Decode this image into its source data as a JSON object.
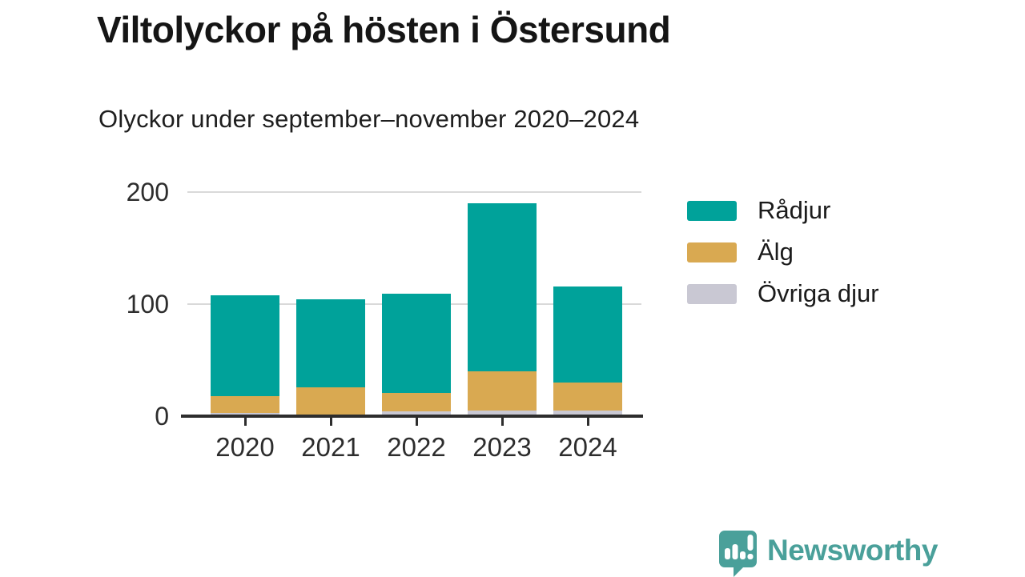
{
  "header": {
    "title": "Viltolyckor på hösten i Östersund",
    "subtitle": "Olyckor under september–november 2020–2024"
  },
  "chart_data": {
    "type": "bar",
    "stacked": true,
    "title": "Viltolyckor på hösten i Östersund",
    "subtitle": "Olyckor under september–november 2020–2024",
    "categories": [
      "2020",
      "2021",
      "2022",
      "2023",
      "2024"
    ],
    "series": [
      {
        "name": "Rådjur",
        "color": "#00a29a",
        "values": [
          90,
          78,
          88,
          150,
          86
        ]
      },
      {
        "name": "Älg",
        "color": "#d9a951",
        "values": [
          15,
          25,
          17,
          35,
          25
        ]
      },
      {
        "name": "Övriga djur",
        "color": "#c9c8d3",
        "values": [
          3,
          1,
          4,
          5,
          5
        ]
      }
    ],
    "totals": [
      108,
      104,
      109,
      190,
      116
    ],
    "ylim": [
      0,
      200
    ],
    "yticks": [
      0,
      100,
      200
    ],
    "grid": "horizontal",
    "legend_position": "right",
    "axis_color": "#2d2d2d",
    "gridline_color": "#d9d9d9"
  },
  "footer": {
    "brand": "Newsworthy",
    "brand_color": "#4aa09a"
  }
}
